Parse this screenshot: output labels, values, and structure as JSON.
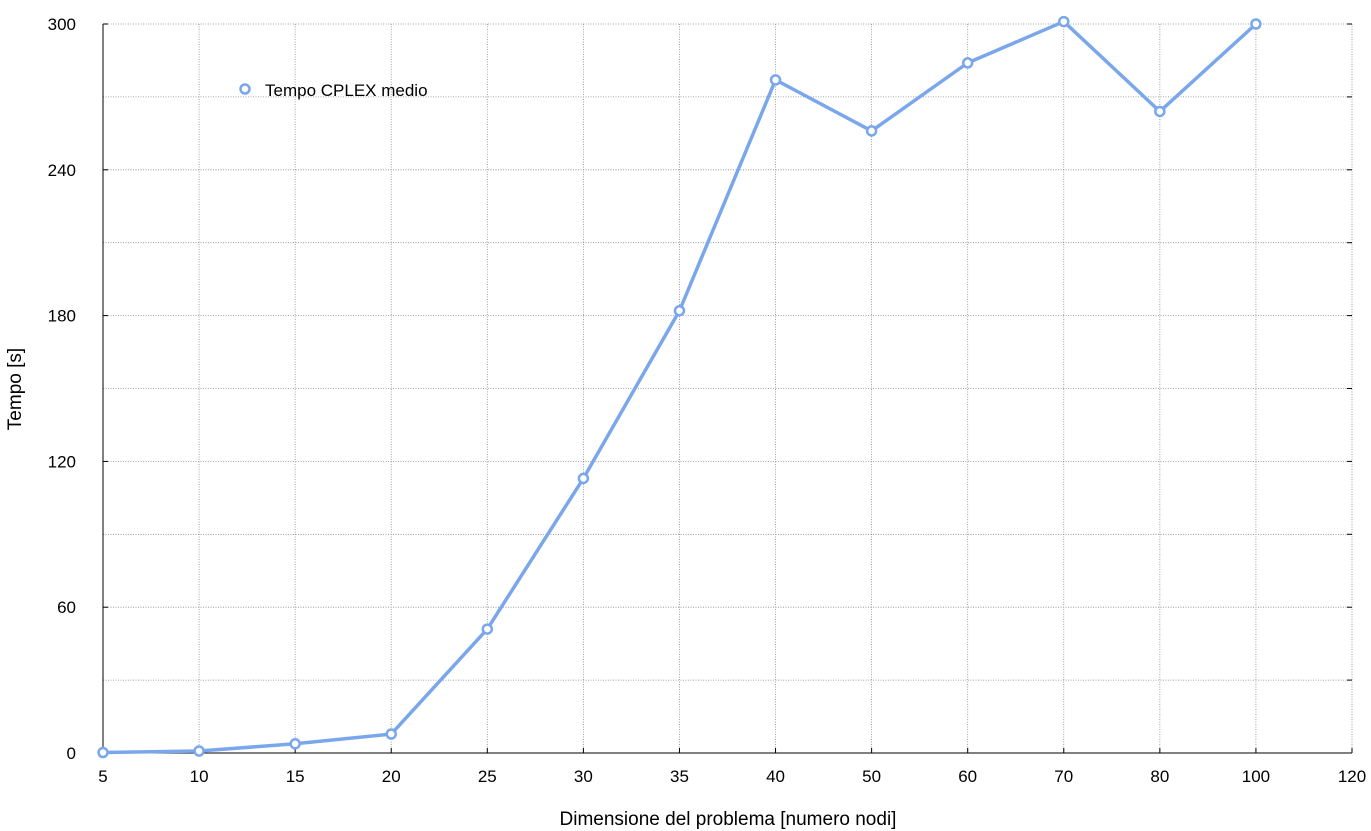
{
  "chart_data": {
    "type": "line",
    "categories": [
      "5",
      "10",
      "15",
      "20",
      "25",
      "30",
      "35",
      "40",
      "50",
      "60",
      "70",
      "80",
      "100",
      "120"
    ],
    "series": [
      {
        "name": "Tempo CPLEX medio",
        "values": [
          0.2,
          0.8,
          3.8,
          7.8,
          51,
          113,
          182,
          277,
          256,
          284,
          301,
          264,
          300,
          null
        ]
      }
    ],
    "xlabel": "Dimensione del problema [numero nodi]",
    "ylabel": "Tempo [s]",
    "ylim": [
      0,
      300
    ],
    "yticks": [
      0,
      60,
      120,
      180,
      240,
      300
    ],
    "grid": true,
    "legend_position": "top-left",
    "colors": {
      "series": "#7aa7ec",
      "grid": "#8a8a8a",
      "axis": "#000000"
    }
  }
}
